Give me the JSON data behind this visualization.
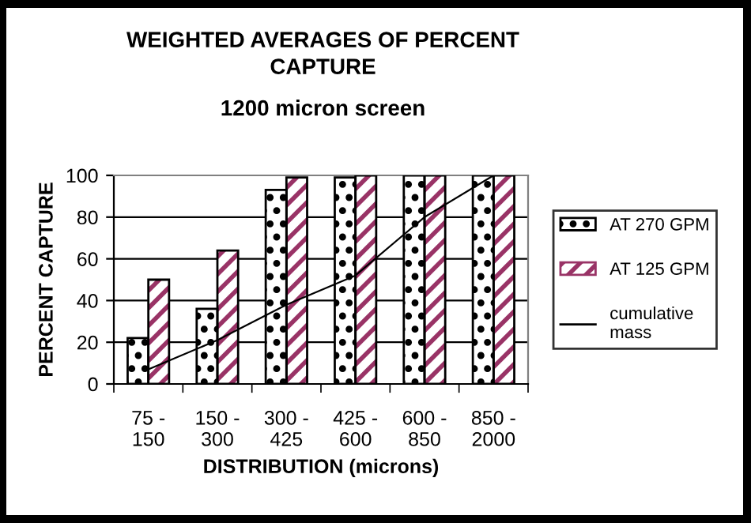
{
  "chart_data": {
    "type": "bar",
    "title": "WEIGHTED AVERAGES OF PERCENT\nCAPTURE",
    "subtitle": "1200 micron screen",
    "xlabel": "DISTRIBUTION (microns)",
    "ylabel": "PERCENT CAPTURE",
    "categories": [
      "75 -\n150",
      "150 -\n300",
      "300 -\n425",
      "425 -\n600",
      "600 -\n850",
      "850 -\n2000"
    ],
    "series": [
      {
        "name": "AT 270 GPM",
        "color": "#ffffff",
        "values": [
          22,
          36,
          93,
          99,
          100,
          100
        ]
      },
      {
        "name": "AT 125 GPM",
        "color": "#993366",
        "values": [
          50,
          64,
          99,
          100,
          100,
          100
        ]
      },
      {
        "name": "cumulative\nmass",
        "type": "line",
        "color": "#000000",
        "values": [
          7,
          21,
          38,
          52,
          80,
          100
        ]
      }
    ],
    "ylim": [
      0,
      100
    ],
    "yticks": [
      0,
      20,
      40,
      60,
      80,
      100
    ],
    "grid": "y",
    "legend": "right"
  }
}
